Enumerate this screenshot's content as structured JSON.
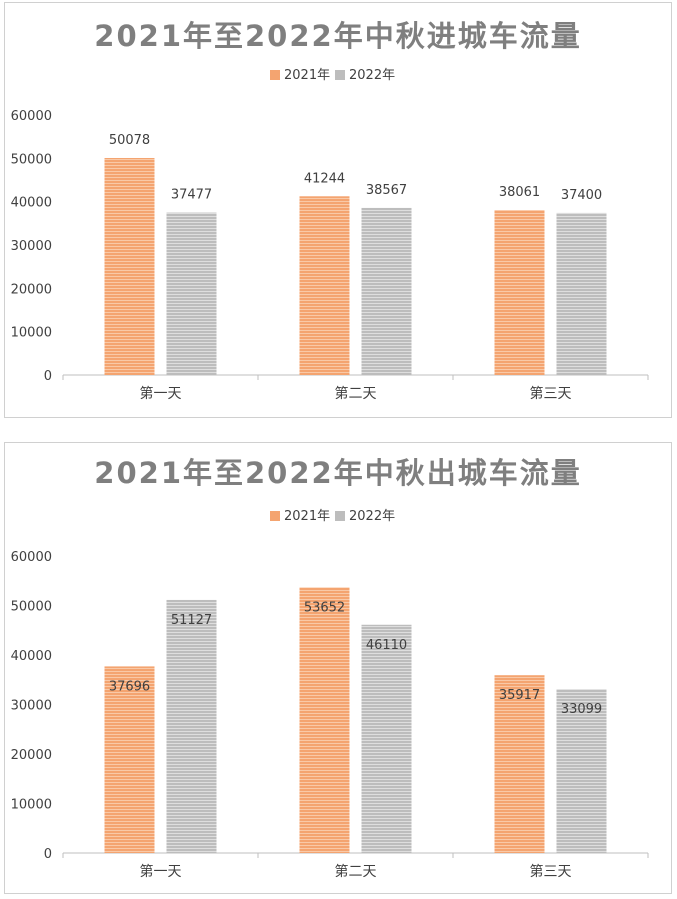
{
  "chart_data": [
    {
      "type": "bar",
      "title": "2021年至2022年中秋进城车流量",
      "categories": [
        "第一天",
        "第二天",
        "第三天"
      ],
      "series": [
        {
          "name": "2021年",
          "values": [
            50078,
            41244,
            38061
          ]
        },
        {
          "name": "2022年",
          "values": [
            37477,
            38567,
            37400
          ]
        }
      ],
      "ylim": [
        0,
        60000
      ],
      "yticks": [
        "0",
        "10000",
        "20000",
        "30000",
        "40000",
        "50000",
        "60000"
      ],
      "legend": "top-center",
      "label_position": "above",
      "colors": [
        "#f4a470",
        "#bdbdbd"
      ]
    },
    {
      "type": "bar",
      "title": "2021年至2022年中秋出城车流量",
      "categories": [
        "第一天",
        "第二天",
        "第三天"
      ],
      "series": [
        {
          "name": "2021年",
          "values": [
            37696,
            53652,
            35917
          ]
        },
        {
          "name": "2022年",
          "values": [
            51127,
            46110,
            33099
          ]
        }
      ],
      "ylim": [
        0,
        60000
      ],
      "yticks": [
        "0",
        "10000",
        "20000",
        "30000",
        "40000",
        "50000",
        "60000"
      ],
      "legend": "top-center",
      "label_position": "inside",
      "colors": [
        "#f4a470",
        "#bdbdbd"
      ]
    }
  ]
}
